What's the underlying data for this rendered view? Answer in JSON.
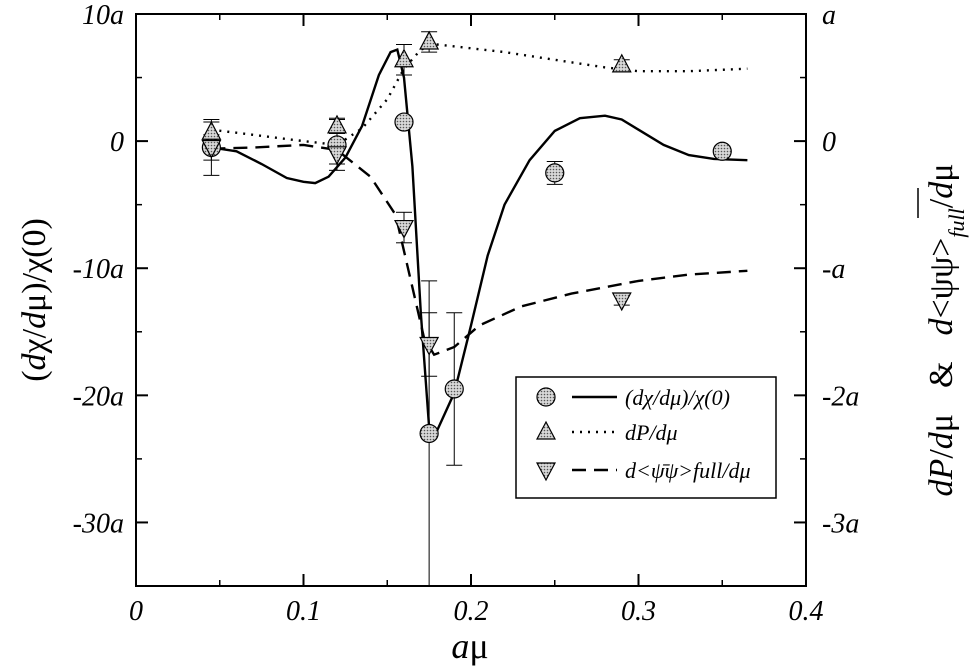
{
  "chart_data": {
    "type": "scatter",
    "title": "",
    "xlabel": "aμ",
    "ylabel_left": "(dχ/dμ)/χ(0)",
    "ylabel_right": "dP/dμ  &  d<ψ̄ψ>_full/dμ",
    "xlim": [
      0,
      0.4
    ],
    "ylim_left": [
      -35,
      10
    ],
    "ylim_right": [
      -3.5,
      1.0
    ],
    "x_ticks": [
      {
        "value": 0,
        "label": "0"
      },
      {
        "value": 0.1,
        "label": "0.1"
      },
      {
        "value": 0.2,
        "label": "0.2"
      },
      {
        "value": 0.3,
        "label": "0.3"
      },
      {
        "value": 0.4,
        "label": "0.4"
      }
    ],
    "y_ticks_left": [
      {
        "value": 10,
        "label": "10a"
      },
      {
        "value": 0,
        "label": "0"
      },
      {
        "value": -10,
        "label": "-10a"
      },
      {
        "value": -20,
        "label": "-20a"
      },
      {
        "value": -30,
        "label": "-30a"
      }
    ],
    "y_ticks_right": [
      {
        "value": 1,
        "label": "a"
      },
      {
        "value": 0,
        "label": "0"
      },
      {
        "value": -1,
        "label": "-a"
      },
      {
        "value": -2,
        "label": "-2a"
      },
      {
        "value": -3,
        "label": "-3a"
      }
    ],
    "legend": {
      "position": "bottom-right",
      "entries": [
        {
          "label": "(dχ/dμ)/χ(0)",
          "marker": "circle",
          "line": "solid"
        },
        {
          "label": "dP/dμ",
          "marker": "triangle-up",
          "line": "dotted"
        },
        {
          "label": "d<ψ̄ψ>full/dμ",
          "marker": "triangle-down",
          "line": "dashed"
        }
      ]
    },
    "series": [
      {
        "name": "(dχ/dμ)/χ(0)",
        "axis": "left",
        "marker": "circle",
        "points": [
          {
            "x": 0.045,
            "y": -0.5,
            "err": 2.2
          },
          {
            "x": 0.12,
            "y": -0.3,
            "err": 2.0
          },
          {
            "x": 0.16,
            "y": 1.5,
            "err": 0
          },
          {
            "x": 0.175,
            "y": -23.0,
            "err": 12.0
          },
          {
            "x": 0.19,
            "y": -19.5,
            "err": 6.0
          },
          {
            "x": 0.25,
            "y": -2.5,
            "err": 0.9
          },
          {
            "x": 0.35,
            "y": -0.8,
            "err": 0.4
          }
        ],
        "curve": [
          [
            0.045,
            -0.5
          ],
          [
            0.06,
            -0.8
          ],
          [
            0.075,
            -1.8
          ],
          [
            0.09,
            -2.9
          ],
          [
            0.1,
            -3.2
          ],
          [
            0.107,
            -3.3
          ],
          [
            0.115,
            -2.8
          ],
          [
            0.125,
            -1.3
          ],
          [
            0.135,
            1.2
          ],
          [
            0.145,
            5.2
          ],
          [
            0.152,
            7.0
          ],
          [
            0.156,
            7.2
          ],
          [
            0.16,
            5.0
          ],
          [
            0.165,
            -2.0
          ],
          [
            0.17,
            -13.5
          ],
          [
            0.175,
            -22.5
          ],
          [
            0.18,
            -22.7
          ],
          [
            0.19,
            -19.8
          ],
          [
            0.2,
            -14.5
          ],
          [
            0.21,
            -9.0
          ],
          [
            0.22,
            -5.0
          ],
          [
            0.235,
            -1.5
          ],
          [
            0.25,
            0.8
          ],
          [
            0.265,
            1.8
          ],
          [
            0.28,
            2.0
          ],
          [
            0.29,
            1.7
          ],
          [
            0.3,
            0.9
          ],
          [
            0.315,
            -0.3
          ],
          [
            0.33,
            -1.1
          ],
          [
            0.345,
            -1.4
          ],
          [
            0.365,
            -1.5
          ]
        ]
      },
      {
        "name": "dP/dμ",
        "axis": "right",
        "marker": "triangle-up",
        "points": [
          {
            "x": 0.045,
            "y": 0.07,
            "err": 0.08
          },
          {
            "x": 0.12,
            "y": 0.12,
            "err": 0.06
          },
          {
            "x": 0.16,
            "y": 0.64,
            "err": 0.12
          },
          {
            "x": 0.175,
            "y": 0.78,
            "err": 0.08
          },
          {
            "x": 0.29,
            "y": 0.6,
            "err": 0.04
          }
        ],
        "curve": [
          [
            0.045,
            0.09
          ],
          [
            0.07,
            0.05
          ],
          [
            0.1,
            0.0
          ],
          [
            0.12,
            -0.03
          ],
          [
            0.135,
            0.1
          ],
          [
            0.15,
            0.33
          ],
          [
            0.16,
            0.57
          ],
          [
            0.17,
            0.72
          ],
          [
            0.18,
            0.76
          ],
          [
            0.2,
            0.73
          ],
          [
            0.22,
            0.7
          ],
          [
            0.25,
            0.64
          ],
          [
            0.28,
            0.58
          ],
          [
            0.3,
            0.55
          ],
          [
            0.33,
            0.55
          ],
          [
            0.365,
            0.57
          ]
        ]
      },
      {
        "name": "d<ψ̄ψ>full/dμ",
        "axis": "right",
        "marker": "triangle-down",
        "points": [
          {
            "x": 0.045,
            "y": -0.05,
            "err": 0.1
          },
          {
            "x": 0.12,
            "y": -0.1,
            "err": 0.08
          },
          {
            "x": 0.16,
            "y": -0.68,
            "err": 0.12
          },
          {
            "x": 0.175,
            "y": -1.6,
            "err": 0.25
          },
          {
            "x": 0.29,
            "y": -1.25,
            "err": 0.04
          }
        ],
        "curve": [
          [
            0.045,
            -0.06
          ],
          [
            0.07,
            -0.05
          ],
          [
            0.1,
            -0.03
          ],
          [
            0.12,
            -0.07
          ],
          [
            0.14,
            -0.28
          ],
          [
            0.155,
            -0.58
          ],
          [
            0.165,
            -1.15
          ],
          [
            0.172,
            -1.55
          ],
          [
            0.178,
            -1.68
          ],
          [
            0.19,
            -1.62
          ],
          [
            0.205,
            -1.45
          ],
          [
            0.23,
            -1.3
          ],
          [
            0.26,
            -1.2
          ],
          [
            0.3,
            -1.1
          ],
          [
            0.33,
            -1.05
          ],
          [
            0.365,
            -1.02
          ]
        ]
      }
    ]
  }
}
